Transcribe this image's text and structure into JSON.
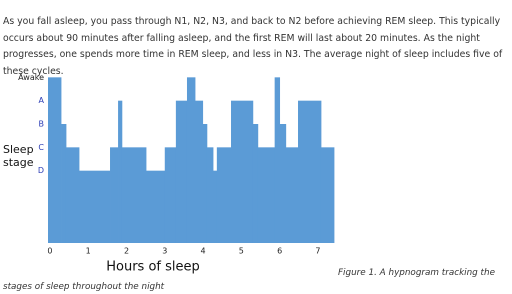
{
  "paragraph": "As you fall asleep, you pass through N1, N2, N3, and back to N2 before achieving REM sleep. This typically occurs about 90 minutes after falling asleep, and the first REM will last about 20 minutes. As the night progresses, one spends more time in REM sleep, and less in N3. The average night of sleep includes five of these cycles.",
  "caption": "Figure 1. A hypnogram tracking the stages of sleep throughout the night",
  "chart_data": {
    "type": "step-area",
    "xlabel": "Hours of sleep",
    "ylabel": "Sleep stage",
    "color": "#5b9bd6",
    "x": [
      -0.05,
      0.29,
      0.42,
      0.76,
      1.57,
      1.78,
      1.88,
      2.51,
      3.0,
      3.29,
      3.58,
      3.79,
      3.99,
      4.1,
      4.26,
      4.36,
      4.73,
      5.3,
      5.43,
      5.87,
      6.0,
      6.16,
      6.48,
      7.08
    ],
    "values": [
      5,
      3,
      2,
      1,
      2,
      4,
      2,
      1,
      2,
      4,
      5,
      4,
      3,
      2,
      1,
      2,
      4,
      3,
      2,
      5,
      3,
      2,
      4,
      2
    ],
    "xlim": [
      -0.05,
      7.42
    ],
    "ylim": [
      -2.1,
      5.1
    ],
    "xticks": [
      0,
      1,
      2,
      3,
      4,
      5,
      6,
      7
    ],
    "yticks": [
      {
        "value": 5,
        "label": "Awake"
      },
      {
        "value": 4,
        "label": "A"
      },
      {
        "value": 3,
        "label": "B"
      },
      {
        "value": 2,
        "label": "C"
      },
      {
        "value": 1,
        "label": "D"
      }
    ]
  }
}
